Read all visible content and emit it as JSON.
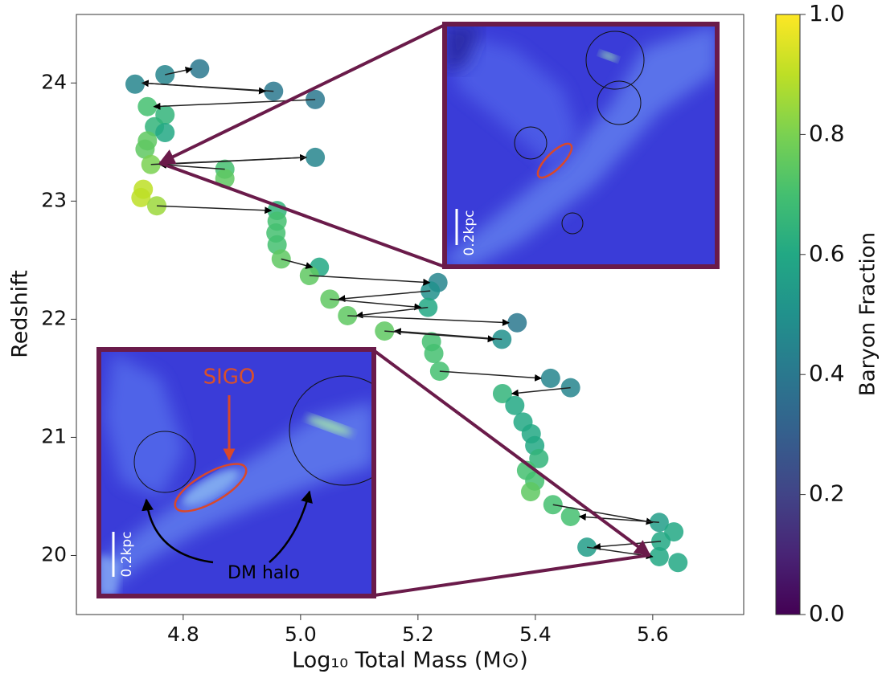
{
  "chart_data": {
    "type": "scatter",
    "xlabel": "Log₁₀ Total Mass (M⊙)",
    "ylabel": "Redshift",
    "xlim": [
      4.618,
      5.755
    ],
    "ylim": [
      19.5,
      24.58
    ],
    "xticks": [
      4.8,
      {
        "value": 5,
        "label": "5.0"
      },
      5.2,
      5.4,
      5.6
    ],
    "yticks": [
      20,
      21,
      22,
      23,
      24
    ],
    "colormap": "viridis",
    "colorbar": {
      "label": "Baryon Fraction",
      "lim": [
        0,
        1
      ],
      "ticks": [
        {
          "value": 0,
          "label": "0.0"
        },
        0.2,
        0.4,
        0.6,
        0.8,
        {
          "value": 1,
          "label": "1.0"
        }
      ]
    },
    "x": [
      4.828,
      4.769,
      4.718,
      4.954,
      5.025,
      4.739,
      4.769,
      4.751,
      4.769,
      4.739,
      4.735,
      4.745,
      5.025,
      4.871,
      4.871,
      4.732,
      4.728,
      4.755,
      4.96,
      4.96,
      4.958,
      4.96,
      4.967,
      5.032,
      5.015,
      5.234,
      5.221,
      5.05,
      5.217,
      5.08,
      5.369,
      5.143,
      5.343,
      5.223,
      5.227,
      5.237,
      5.426,
      5.46,
      5.344,
      5.365,
      5.379,
      5.393,
      5.399,
      5.406,
      5.385,
      5.399,
      5.392,
      5.43,
      5.46,
      5.611,
      5.636,
      5.614,
      5.488,
      5.611,
      5.643
    ],
    "y": [
      24.12,
      24.07,
      23.99,
      23.93,
      23.86,
      23.8,
      23.73,
      23.63,
      23.58,
      23.51,
      23.44,
      23.31,
      23.37,
      23.27,
      23.19,
      23.1,
      23.03,
      22.96,
      22.92,
      22.83,
      22.73,
      22.63,
      22.51,
      22.44,
      22.37,
      22.31,
      22.24,
      22.17,
      22.1,
      22.03,
      21.97,
      21.9,
      21.83,
      21.81,
      21.71,
      21.56,
      21.5,
      21.42,
      21.37,
      21.27,
      21.13,
      21.03,
      20.93,
      20.82,
      20.72,
      20.63,
      20.54,
      20.43,
      20.33,
      20.28,
      20.2,
      20.12,
      20.07,
      19.99,
      19.94
    ],
    "c": [
      0.4,
      0.45,
      0.45,
      0.4,
      0.4,
      0.7,
      0.65,
      0.65,
      0.6,
      0.75,
      0.75,
      0.8,
      0.45,
      0.7,
      0.75,
      0.9,
      0.9,
      0.85,
      0.65,
      0.7,
      0.7,
      0.7,
      0.75,
      0.6,
      0.75,
      0.45,
      0.5,
      0.75,
      0.6,
      0.75,
      0.4,
      0.75,
      0.5,
      0.7,
      0.7,
      0.7,
      0.45,
      0.45,
      0.65,
      0.6,
      0.6,
      0.6,
      0.6,
      0.65,
      0.7,
      0.7,
      0.75,
      0.7,
      0.7,
      0.55,
      0.6,
      0.6,
      0.55,
      0.6,
      0.6
    ],
    "arrows": [
      {
        "x": [
          4.769,
          4.815
        ],
        "y": [
          24.07,
          24.12
        ]
      },
      {
        "x": [
          4.954,
          4.73
        ],
        "y": [
          23.93,
          24.0
        ]
      },
      {
        "x": [
          4.73,
          4.94
        ],
        "y": [
          24.0,
          23.93
        ]
      },
      {
        "x": [
          5.025,
          4.75
        ],
        "y": [
          23.86,
          23.8
        ]
      },
      {
        "x": [
          4.745,
          5.01
        ],
        "y": [
          23.31,
          23.37
        ]
      },
      {
        "x": [
          5.01,
          4.76
        ],
        "y": [
          23.37,
          23.31
        ]
      },
      {
        "x": [
          4.871,
          4.76
        ],
        "y": [
          23.27,
          23.31
        ]
      },
      {
        "x": [
          4.755,
          4.95
        ],
        "y": [
          22.96,
          22.92
        ]
      },
      {
        "x": [
          4.967,
          5.02
        ],
        "y": [
          22.51,
          22.44
        ]
      },
      {
        "x": [
          5.015,
          5.22
        ],
        "y": [
          22.37,
          22.31
        ]
      },
      {
        "x": [
          5.221,
          5.065
        ],
        "y": [
          22.24,
          22.17
        ]
      },
      {
        "x": [
          5.05,
          5.205
        ],
        "y": [
          22.17,
          22.1
        ]
      },
      {
        "x": [
          5.217,
          5.095
        ],
        "y": [
          22.1,
          22.03
        ]
      },
      {
        "x": [
          5.08,
          5.355
        ],
        "y": [
          22.03,
          21.97
        ]
      },
      {
        "x": [
          5.343,
          5.16
        ],
        "y": [
          21.83,
          21.9
        ]
      },
      {
        "x": [
          5.143,
          5.33
        ],
        "y": [
          21.9,
          21.83
        ]
      },
      {
        "x": [
          5.237,
          5.41
        ],
        "y": [
          21.56,
          21.5
        ]
      },
      {
        "x": [
          5.46,
          5.36
        ],
        "y": [
          21.42,
          21.37
        ]
      },
      {
        "x": [
          5.43,
          5.6
        ],
        "y": [
          20.43,
          20.28
        ]
      },
      {
        "x": [
          5.611,
          5.475
        ],
        "y": [
          20.28,
          20.33
        ]
      },
      {
        "x": [
          5.614,
          5.5
        ],
        "y": [
          20.12,
          20.07
        ]
      },
      {
        "x": [
          5.488,
          5.6
        ],
        "y": [
          20.07,
          19.99
        ]
      }
    ]
  },
  "insets": [
    {
      "scale_bar": "0.2kpc"
    },
    {
      "scale_bar": "0.2kpc",
      "labels": [
        "SIGO",
        "DM halo"
      ]
    }
  ]
}
